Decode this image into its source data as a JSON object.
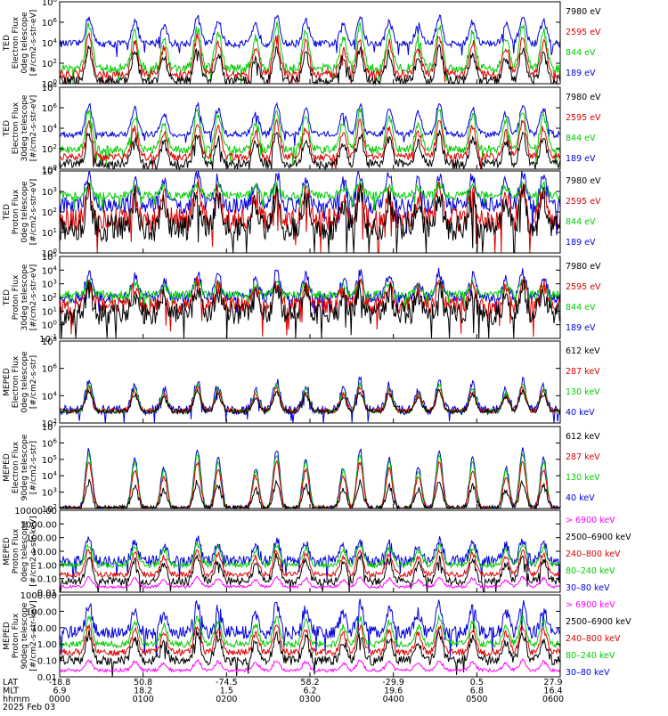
{
  "chart_data": [
    {
      "type": "line",
      "ylabel": [
        "TED",
        "Electron Flux",
        "0deg telescope",
        "[#/cm2-s-str-eV]"
      ],
      "ytick_labels": [
        "10^0",
        "10^2",
        "10^4",
        "10^6",
        "10^8"
      ],
      "ylim": [
        1,
        100000000
      ],
      "yscale": "log",
      "legend_placement": "right",
      "legend": [
        {
          "label": "7980 eV",
          "color": "#000000"
        },
        {
          "label": "2595 eV",
          "color": "#dd0000"
        },
        {
          "label": "844 eV",
          "color": "#00cc00"
        },
        {
          "label": "189 eV",
          "color": "#0000dd"
        }
      ],
      "series": [
        {
          "color": "#0000dd",
          "base_exp": 3.9,
          "peak_exp": 6.5,
          "noise": 0.35
        },
        {
          "color": "#00cc00",
          "base_exp": 1.5,
          "peak_exp": 5.7,
          "noise": 0.45
        },
        {
          "color": "#dd0000",
          "base_exp": 0.9,
          "peak_exp": 4.6,
          "noise": 0.4
        },
        {
          "color": "#000000",
          "base_exp": 0.3,
          "peak_exp": 3.4,
          "noise": 0.45
        }
      ]
    },
    {
      "type": "line",
      "ylabel": [
        "TED",
        "Electron Flux",
        "30deg telescope",
        "[#/cm2-s-str-eV]"
      ],
      "ytick_labels": [
        "10^0",
        "10^2",
        "10^4",
        "10^6",
        "10^8"
      ],
      "ylim": [
        1,
        100000000
      ],
      "yscale": "log",
      "legend_placement": "right",
      "legend": [
        {
          "label": "7980 eV",
          "color": "#000000"
        },
        {
          "label": "2595 eV",
          "color": "#dd0000"
        },
        {
          "label": "844 eV",
          "color": "#00cc00"
        },
        {
          "label": "189 eV",
          "color": "#0000dd"
        }
      ],
      "series": [
        {
          "color": "#0000dd",
          "base_exp": 3.4,
          "peak_exp": 6.3,
          "noise": 0.3
        },
        {
          "color": "#00cc00",
          "base_exp": 1.9,
          "peak_exp": 5.8,
          "noise": 0.4
        },
        {
          "color": "#dd0000",
          "base_exp": 1.2,
          "peak_exp": 4.6,
          "noise": 0.35
        },
        {
          "color": "#000000",
          "base_exp": 0.5,
          "peak_exp": 3.4,
          "noise": 0.45
        }
      ]
    },
    {
      "type": "line",
      "ylabel": [
        "TED",
        "Proton Flux",
        "0deg telescope",
        "[#/cm2-s-str-eV]"
      ],
      "ytick_labels": [
        "10^0",
        "10^1",
        "10^2",
        "10^3",
        "10^4"
      ],
      "ylim": [
        0.1,
        10000
      ],
      "yscale": "log",
      "legend_placement": "right",
      "legend": [
        {
          "label": "7980 eV",
          "color": "#000000"
        },
        {
          "label": "2595 eV",
          "color": "#dd0000"
        },
        {
          "label": "844 eV",
          "color": "#00cc00"
        },
        {
          "label": "189 eV",
          "color": "#0000dd"
        }
      ],
      "series": [
        {
          "color": "#0000dd",
          "base_exp": 1.9,
          "peak_exp": 3.9,
          "noise": 0.5
        },
        {
          "color": "#00cc00",
          "base_exp": 2.5,
          "peak_exp": 3.2,
          "noise": 0.25
        },
        {
          "color": "#dd0000",
          "base_exp": 1.0,
          "peak_exp": 2.9,
          "noise": 0.7
        },
        {
          "color": "#000000",
          "base_exp": 0.5,
          "peak_exp": 2.6,
          "noise": 0.8
        }
      ]
    },
    {
      "type": "line",
      "ylabel": [
        "TED",
        "Proton Flux",
        "30deg telescope",
        "[#/cm2-s-str-eV]"
      ],
      "ytick_labels": [
        "10^-1",
        "10^0",
        "10^1",
        "10^2",
        "10^3",
        "10^4",
        "10^5"
      ],
      "ylim": [
        0.1,
        100000
      ],
      "yscale": "log",
      "legend_placement": "right",
      "legend": [
        {
          "label": "7980 eV",
          "color": "#000000"
        },
        {
          "label": "2595 eV",
          "color": "#dd0000"
        },
        {
          "label": "844 eV",
          "color": "#00cc00"
        },
        {
          "label": "189 eV",
          "color": "#0000dd"
        }
      ],
      "series": [
        {
          "color": "#0000dd",
          "base_exp": 2.0,
          "peak_exp": 3.8,
          "noise": 0.4
        },
        {
          "color": "#00cc00",
          "base_exp": 2.2,
          "peak_exp": 3.1,
          "noise": 0.3
        },
        {
          "color": "#dd0000",
          "base_exp": 1.4,
          "peak_exp": 3.0,
          "noise": 0.6
        },
        {
          "color": "#000000",
          "base_exp": 0.8,
          "peak_exp": 2.6,
          "noise": 0.8
        }
      ]
    },
    {
      "type": "line",
      "ylabel": [
        "MEPED",
        "Electron Flux",
        "0deg telescope",
        "[#/cm2-s-str]"
      ],
      "ytick_labels": [
        "10^2",
        "10^4",
        "10^6",
        "10^8"
      ],
      "ylim": [
        10,
        100000000
      ],
      "yscale": "log",
      "legend_placement": "right",
      "legend": [
        {
          "label": "612 keV",
          "color": "#000000"
        },
        {
          "label": "287 keV",
          "color": "#dd0000"
        },
        {
          "label": "130 keV",
          "color": "#00cc00"
        },
        {
          "label": "40 keV",
          "color": "#0000dd"
        }
      ],
      "series": [
        {
          "color": "#0000dd",
          "base_exp": 2.1,
          "peak_exp": 4.6,
          "noise": 0.4
        },
        {
          "color": "#00cc00",
          "base_exp": 2.0,
          "peak_exp": 4.3,
          "noise": 0.15
        },
        {
          "color": "#dd0000",
          "base_exp": 2.05,
          "peak_exp": 4.0,
          "noise": 0.2
        },
        {
          "color": "#000000",
          "base_exp": 2.0,
          "peak_exp": 3.7,
          "noise": 0.2
        }
      ]
    },
    {
      "type": "line",
      "ylabel": [
        "MEPED",
        "Electron Flux",
        "90deg telescope",
        "[#/cm2-s-str]"
      ],
      "ytick_labels": [
        "10^2",
        "10^3",
        "10^4",
        "10^5",
        "10^6",
        "10^7"
      ],
      "ylim": [
        100,
        10000000
      ],
      "yscale": "log",
      "legend_placement": "right",
      "legend": [
        {
          "label": "612 keV",
          "color": "#000000"
        },
        {
          "label": "287 keV",
          "color": "#dd0000"
        },
        {
          "label": "130 keV",
          "color": "#00cc00"
        },
        {
          "label": "40 keV",
          "color": "#0000dd"
        }
      ],
      "series": [
        {
          "color": "#0000dd",
          "base_exp": 2.0,
          "peak_exp": 5.6,
          "noise": 0.15
        },
        {
          "color": "#00cc00",
          "base_exp": 2.0,
          "peak_exp": 5.3,
          "noise": 0.1
        },
        {
          "color": "#dd0000",
          "base_exp": 2.0,
          "peak_exp": 4.8,
          "noise": 0.15
        },
        {
          "color": "#000000",
          "base_exp": 2.0,
          "peak_exp": 3.6,
          "noise": 0.2
        }
      ]
    },
    {
      "type": "line",
      "ylabel": [
        "MEPED",
        "Proton Flux",
        "0deg telescope",
        "[#/cm2-s-str-keV]"
      ],
      "ytick_labels": [
        "0.01",
        "0.10",
        "1.00",
        "10.00",
        "100.00",
        "1000.00",
        "10000.00"
      ],
      "ylim": [
        0.01,
        10000
      ],
      "yscale": "log",
      "legend_placement": "right",
      "legend": [
        {
          "label": "> 6900 keV",
          "color": "#ff00ff"
        },
        {
          "label": "2500–6900 keV",
          "color": "#000000"
        },
        {
          "label": "240–800 keV",
          "color": "#dd0000"
        },
        {
          "label": "80–240 keV",
          "color": "#00cc00"
        },
        {
          "label": "30–80 keV",
          "color": "#0000dd"
        }
      ],
      "series": [
        {
          "color": "#0000dd",
          "base_exp": 0.3,
          "peak_exp": 1.8,
          "noise": 0.4
        },
        {
          "color": "#00cc00",
          "base_exp": 0.0,
          "peak_exp": 1.5,
          "noise": 0.2
        },
        {
          "color": "#dd0000",
          "base_exp": -0.7,
          "peak_exp": 1.1,
          "noise": 0.2
        },
        {
          "color": "#000000",
          "base_exp": -1.2,
          "peak_exp": 0.6,
          "noise": 0.3
        },
        {
          "color": "#ff00ff",
          "base_exp": -1.6,
          "peak_exp": -0.9,
          "noise": 0.1
        }
      ]
    },
    {
      "type": "line",
      "ylabel": [
        "MEPED",
        "Proton Flux",
        "90deg telescope",
        "[#/cm2-s-str-keV]"
      ],
      "ytick_labels": [
        "0.01",
        "0.10",
        "1.00",
        "10.00",
        "100.00",
        "1000.00"
      ],
      "ylim": [
        0.01,
        1000
      ],
      "yscale": "log",
      "legend_placement": "right",
      "legend": [
        {
          "label": "> 6900 keV",
          "color": "#ff00ff"
        },
        {
          "label": "2500–6900 keV",
          "color": "#000000"
        },
        {
          "label": "240–800 keV",
          "color": "#dd0000"
        },
        {
          "label": "80–240 keV",
          "color": "#00cc00"
        },
        {
          "label": "30–80 keV",
          "color": "#0000dd"
        }
      ],
      "series": [
        {
          "color": "#0000dd",
          "base_exp": 0.7,
          "peak_exp": 2.4,
          "noise": 0.4
        },
        {
          "color": "#00cc00",
          "base_exp": 0.0,
          "peak_exp": 1.6,
          "noise": 0.2
        },
        {
          "color": "#dd0000",
          "base_exp": -0.5,
          "peak_exp": 1.1,
          "noise": 0.2
        },
        {
          "color": "#000000",
          "base_exp": -1.0,
          "peak_exp": 0.6,
          "noise": 0.3
        },
        {
          "color": "#ff00ff",
          "base_exp": -1.6,
          "peak_exp": -1.0,
          "noise": 0.1
        }
      ]
    }
  ],
  "x_axis": {
    "rows": [
      {
        "label": "LAT",
        "values": [
          "-18.8",
          "50.8",
          "-74.5",
          "58.2",
          "-29.9",
          "0.5",
          "27.9"
        ]
      },
      {
        "label": "MLT",
        "values": [
          "6.9",
          "18.2",
          "1.5",
          "6.2",
          "19.6",
          "6.8",
          "16.4"
        ]
      },
      {
        "label": "hhmm",
        "values": [
          "0000",
          "0100",
          "0200",
          "0300",
          "0400",
          "0500",
          "0600"
        ]
      }
    ],
    "date": "2025 Feb 03",
    "hour_range": [
      0,
      6
    ]
  },
  "pass_centers_hours": [
    0.35,
    0.9,
    1.25,
    1.65,
    1.9,
    2.35,
    2.6,
    2.95,
    3.4,
    3.6,
    3.95,
    4.3,
    4.55,
    4.95,
    5.35,
    5.55,
    5.8
  ]
}
